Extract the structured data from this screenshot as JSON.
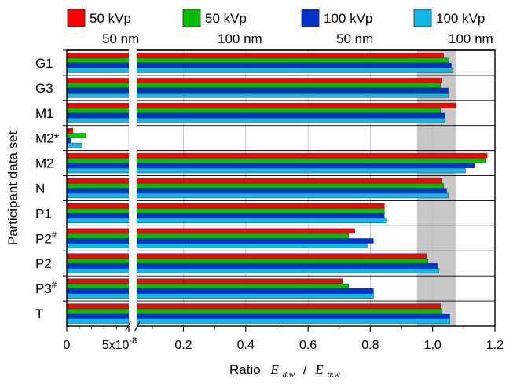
{
  "chart_data": {
    "type": "bar",
    "orientation": "horizontal",
    "legend_position": "top",
    "categories": [
      "G1",
      "G3",
      "M1",
      "M2*",
      "M2",
      "N",
      "P1",
      "P2#",
      "P2",
      "P3#",
      "T"
    ],
    "categories_display": [
      {
        "base": "G1",
        "sup": ""
      },
      {
        "base": "G3",
        "sup": ""
      },
      {
        "base": "M1",
        "sup": ""
      },
      {
        "base": "M2*",
        "sup": ""
      },
      {
        "base": "M2",
        "sup": ""
      },
      {
        "base": "N",
        "sup": ""
      },
      {
        "base": "P1",
        "sup": ""
      },
      {
        "base": "P2",
        "sup": "#"
      },
      {
        "base": "P2",
        "sup": ""
      },
      {
        "base": "P3",
        "sup": "#"
      },
      {
        "base": "T",
        "sup": ""
      }
    ],
    "series": [
      {
        "name": "50 kVp 50 nm",
        "legend_line1": "50 kVp",
        "legend_line2": "50 nm",
        "color": "#ff0000",
        "values": [
          1.035,
          1.03,
          1.075,
          5e-09,
          1.175,
          1.03,
          0.845,
          0.75,
          0.98,
          0.71,
          1.025
        ]
      },
      {
        "name": "50 kVp 100 nm",
        "legend_line1": "50 kVp",
        "legend_line2": "100 nm",
        "color": "#00c000",
        "values": [
          1.05,
          1.025,
          1.025,
          1.55e-08,
          1.17,
          1.035,
          0.845,
          0.73,
          0.985,
          0.73,
          1.03
        ]
      },
      {
        "name": "100 kVp 50 nm",
        "legend_line1": "100 kVp",
        "legend_line2": "50 nm",
        "color": "#0033cc",
        "values": [
          1.06,
          1.05,
          1.04,
          3.5e-09,
          1.135,
          1.045,
          0.845,
          0.81,
          1.015,
          0.81,
          1.055
        ]
      },
      {
        "name": "100 kVp 100 nm",
        "legend_line1": "100 kVp",
        "legend_line2": "100 nm",
        "color": "#10b8e8",
        "values": [
          1.065,
          1.05,
          1.04,
          1.25e-08,
          1.105,
          1.05,
          0.85,
          0.79,
          1.02,
          0.81,
          1.055
        ]
      }
    ],
    "xlabel_prefix": "Ratio",
    "xlabel_num": "E",
    "xlabel_num_sub": "d.w",
    "xlabel_sep": "/",
    "xlabel_den": "E",
    "xlabel_den_sub": "tr.w",
    "ylabel": "Participant data set",
    "xlim": [
      0,
      1.2
    ],
    "axis_break": {
      "left_range": [
        0,
        5e-08
      ],
      "right_range": [
        0.05,
        1.2
      ]
    },
    "x_ticks": [
      {
        "value": 0,
        "label": "0",
        "sup": ""
      },
      {
        "value": 5e-08,
        "label": "5x10",
        "sup": "-8"
      },
      {
        "value": 0.2,
        "label": "0.2",
        "sup": ""
      },
      {
        "value": 0.4,
        "label": "0.4",
        "sup": ""
      },
      {
        "value": 0.6,
        "label": "0.6",
        "sup": ""
      },
      {
        "value": 0.8,
        "label": "0.8",
        "sup": ""
      },
      {
        "value": 1.0,
        "label": "1.0",
        "sup": ""
      },
      {
        "value": 1.2,
        "label": "1.2",
        "sup": ""
      }
    ],
    "shaded_band": {
      "x_range": [
        0.95,
        1.075
      ],
      "color": "#c8c8c8"
    },
    "grid": true
  }
}
